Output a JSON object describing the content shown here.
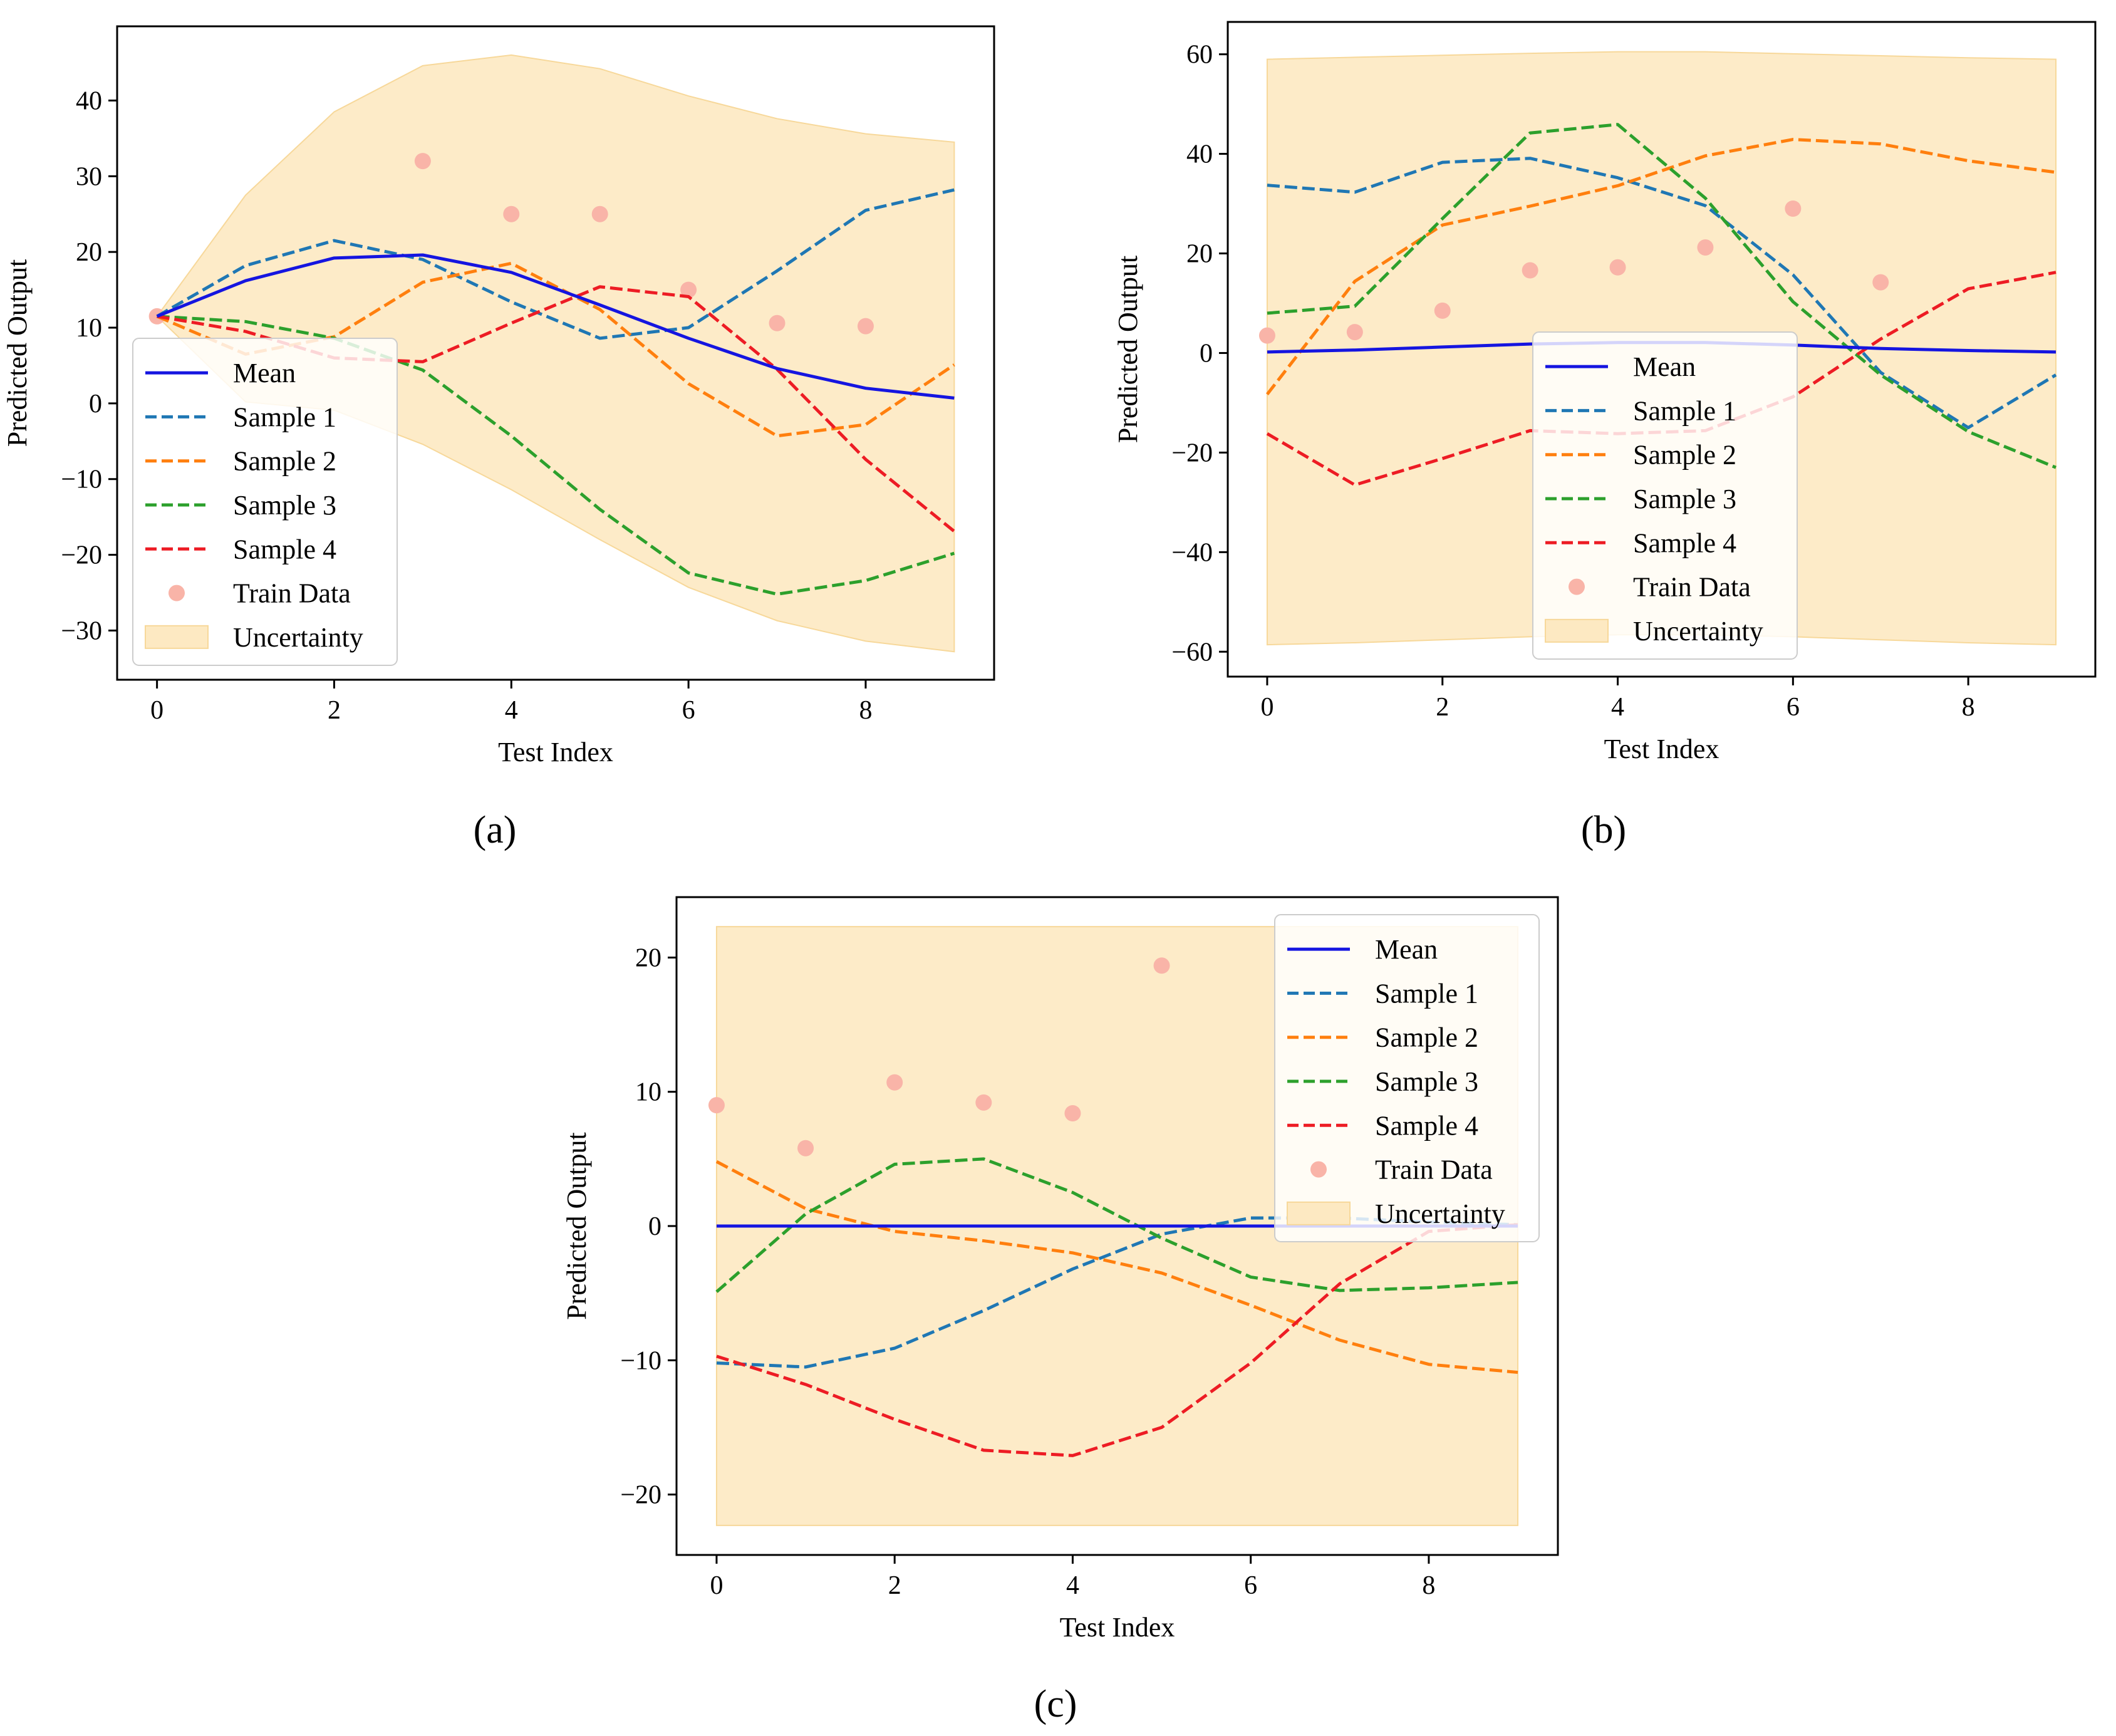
{
  "figure": {
    "captions": [
      "(a)",
      "(b)",
      "(c)"
    ]
  },
  "chart_data": [
    {
      "type": "line",
      "panel": "a",
      "caption": "(a)",
      "xlabel": "Test Index",
      "ylabel": "Predicted Output",
      "xlim": [
        -0.45,
        9.45
      ],
      "ylim": [
        -36.5,
        49.8
      ],
      "xticks": [
        0,
        2,
        4,
        6,
        8
      ],
      "yticks": [
        -30,
        -20,
        -10,
        0,
        10,
        20,
        30,
        40
      ],
      "x": [
        0,
        1,
        2,
        3,
        4,
        5,
        6,
        7,
        8,
        9
      ],
      "series": [
        {
          "name": "Mean",
          "style": "solid",
          "color": "#1515e0",
          "values": [
            11.5,
            16.2,
            19.2,
            19.6,
            17.3,
            13,
            8.6,
            4.6,
            2,
            0.7
          ]
        },
        {
          "name": "Sample 1",
          "style": "dashed",
          "color": "#1f77b4",
          "values": [
            11.5,
            18.2,
            21.5,
            19,
            13.4,
            8.6,
            10,
            17.5,
            25.5,
            28.2
          ]
        },
        {
          "name": "Sample 2",
          "style": "dashed",
          "color": "#ff7f0e",
          "values": [
            11.5,
            6.5,
            8.8,
            16,
            18.5,
            12.4,
            2.6,
            -4.3,
            -2.8,
            5.1
          ]
        },
        {
          "name": "Sample 3",
          "style": "dashed",
          "color": "#2ca02c",
          "values": [
            11.5,
            10.8,
            8.6,
            4.4,
            -4.3,
            -14,
            -22.4,
            -25.2,
            -23.4,
            -19.8
          ]
        },
        {
          "name": "Sample 4",
          "style": "dashed",
          "color": "#ed1c24",
          "values": [
            11.5,
            9.5,
            6,
            5.5,
            10.6,
            15.4,
            14.1,
            4.5,
            -7.4,
            -16.9
          ]
        }
      ],
      "train_data": {
        "name": "Train Data",
        "color": "#f9b4a8",
        "x": [
          0,
          3,
          4,
          5,
          6,
          7,
          8
        ],
        "y": [
          11.5,
          32,
          25,
          25,
          15,
          10.6,
          10.2
        ]
      },
      "uncertainty": {
        "name": "Uncertainty",
        "color": "#fde9c2",
        "upper": [
          11.5,
          27.5,
          38.5,
          44.6,
          46,
          44.2,
          40.6,
          37.6,
          35.6,
          34.5
        ],
        "lower": [
          11.5,
          0.2,
          -0.9,
          -5.4,
          -11.4,
          -18,
          -24.3,
          -28.7,
          -31.4,
          -32.8
        ]
      },
      "legend": [
        "Mean",
        "Sample 1",
        "Sample 2",
        "Sample 3",
        "Sample 4",
        "Train Data",
        "Uncertainty"
      ],
      "legend_position": "lower-left"
    },
    {
      "type": "line",
      "panel": "b",
      "caption": "(b)",
      "xlabel": "Test Index",
      "ylabel": "Predicted Output",
      "xlim": [
        -0.45,
        9.45
      ],
      "ylim": [
        -65,
        66.5
      ],
      "xticks": [
        0,
        2,
        4,
        6,
        8
      ],
      "yticks": [
        -60,
        -40,
        -20,
        0,
        20,
        40,
        60
      ],
      "x": [
        0,
        1,
        2,
        3,
        4,
        5,
        6,
        7,
        8,
        9
      ],
      "series": [
        {
          "name": "Mean",
          "style": "solid",
          "color": "#1515e0",
          "values": [
            0.2,
            0.6,
            1.2,
            1.8,
            2.1,
            2.1,
            1.6,
            0.9,
            0.5,
            0.2
          ]
        },
        {
          "name": "Sample 1",
          "style": "dashed",
          "color": "#1f77b4",
          "values": [
            33.7,
            32.3,
            38.3,
            39.1,
            35.2,
            29.6,
            15.7,
            -3.9,
            -15,
            -4.4
          ]
        },
        {
          "name": "Sample 2",
          "style": "dashed",
          "color": "#ff7f0e",
          "values": [
            -8.3,
            14.4,
            25.7,
            29.5,
            33.6,
            39.6,
            42.9,
            42,
            38.6,
            36.3
          ]
        },
        {
          "name": "Sample 3",
          "style": "dashed",
          "color": "#2ca02c",
          "values": [
            8,
            9.4,
            27,
            44.2,
            45.9,
            31.1,
            10.3,
            -4.4,
            -15.8,
            -23
          ]
        },
        {
          "name": "Sample 4",
          "style": "dashed",
          "color": "#ed1c24",
          "values": [
            -16.2,
            -26.5,
            -21.2,
            -15.6,
            -16.2,
            -15.6,
            -8.8,
            2.8,
            12.9,
            16.2
          ]
        }
      ],
      "train_data": {
        "name": "Train Data",
        "color": "#f9b4a8",
        "x": [
          0,
          1,
          2,
          3,
          4,
          5,
          6,
          7
        ],
        "y": [
          3.5,
          4.2,
          8.5,
          16.6,
          17.2,
          21.2,
          29,
          14.2
        ]
      },
      "uncertainty": {
        "name": "Uncertainty",
        "color": "#fde9c2",
        "upper": [
          59,
          59.4,
          59.8,
          60.2,
          60.5,
          60.5,
          60.1,
          59.7,
          59.3,
          59
        ],
        "lower": [
          -58.6,
          -58.2,
          -57.6,
          -57,
          -56.6,
          -56.6,
          -57,
          -57.6,
          -58.2,
          -58.6
        ]
      },
      "legend": [
        "Mean",
        "Sample 1",
        "Sample 2",
        "Sample 3",
        "Sample 4",
        "Train Data",
        "Uncertainty"
      ],
      "legend_position": "lower-center"
    },
    {
      "type": "line",
      "panel": "c",
      "caption": "(c)",
      "xlabel": "Test Index",
      "ylabel": "Predicted Output",
      "xlim": [
        -0.45,
        9.45
      ],
      "ylim": [
        -24.5,
        24.5
      ],
      "xticks": [
        0,
        2,
        4,
        6,
        8
      ],
      "yticks": [
        -20,
        -10,
        0,
        10,
        20
      ],
      "x": [
        0,
        1,
        2,
        3,
        4,
        5,
        6,
        7,
        8,
        9
      ],
      "series": [
        {
          "name": "Mean",
          "style": "solid",
          "color": "#1515e0",
          "values": [
            0,
            0,
            0,
            0,
            0,
            0,
            0,
            0,
            0,
            0
          ]
        },
        {
          "name": "Sample 1",
          "style": "dashed",
          "color": "#1f77b4",
          "values": [
            -10.2,
            -10.5,
            -9.1,
            -6.3,
            -3.2,
            -0.6,
            0.6,
            0.6,
            0.3,
            0.1
          ]
        },
        {
          "name": "Sample 2",
          "style": "dashed",
          "color": "#ff7f0e",
          "values": [
            4.8,
            1.3,
            -0.4,
            -1.1,
            -2,
            -3.5,
            -5.9,
            -8.5,
            -10.3,
            -10.9
          ]
        },
        {
          "name": "Sample 3",
          "style": "dashed",
          "color": "#2ca02c",
          "values": [
            -4.9,
            0.9,
            4.6,
            5,
            2.5,
            -0.9,
            -3.8,
            -4.8,
            -4.6,
            -4.2
          ]
        },
        {
          "name": "Sample 4",
          "style": "dashed",
          "color": "#ed1c24",
          "values": [
            -9.7,
            -11.8,
            -14.4,
            -16.7,
            -17.1,
            -15,
            -10.2,
            -4.3,
            -0.4,
            0.1
          ]
        }
      ],
      "train_data": {
        "name": "Train Data",
        "color": "#f9b4a8",
        "x": [
          0,
          1,
          2,
          3,
          4,
          5
        ],
        "y": [
          9,
          5.8,
          10.7,
          9.2,
          8.4,
          19.4
        ]
      },
      "uncertainty": {
        "name": "Uncertainty",
        "color": "#fde9c2",
        "upper": [
          22.3,
          22.3,
          22.3,
          22.3,
          22.3,
          22.3,
          22.3,
          22.3,
          22.3,
          22.3
        ],
        "lower": [
          -22.3,
          -22.3,
          -22.3,
          -22.3,
          -22.3,
          -22.3,
          -22.3,
          -22.3,
          -22.3,
          -22.3
        ]
      },
      "legend": [
        "Mean",
        "Sample 1",
        "Sample 2",
        "Sample 3",
        "Sample 4",
        "Train Data",
        "Uncertainty"
      ],
      "legend_position": "upper-right"
    }
  ]
}
